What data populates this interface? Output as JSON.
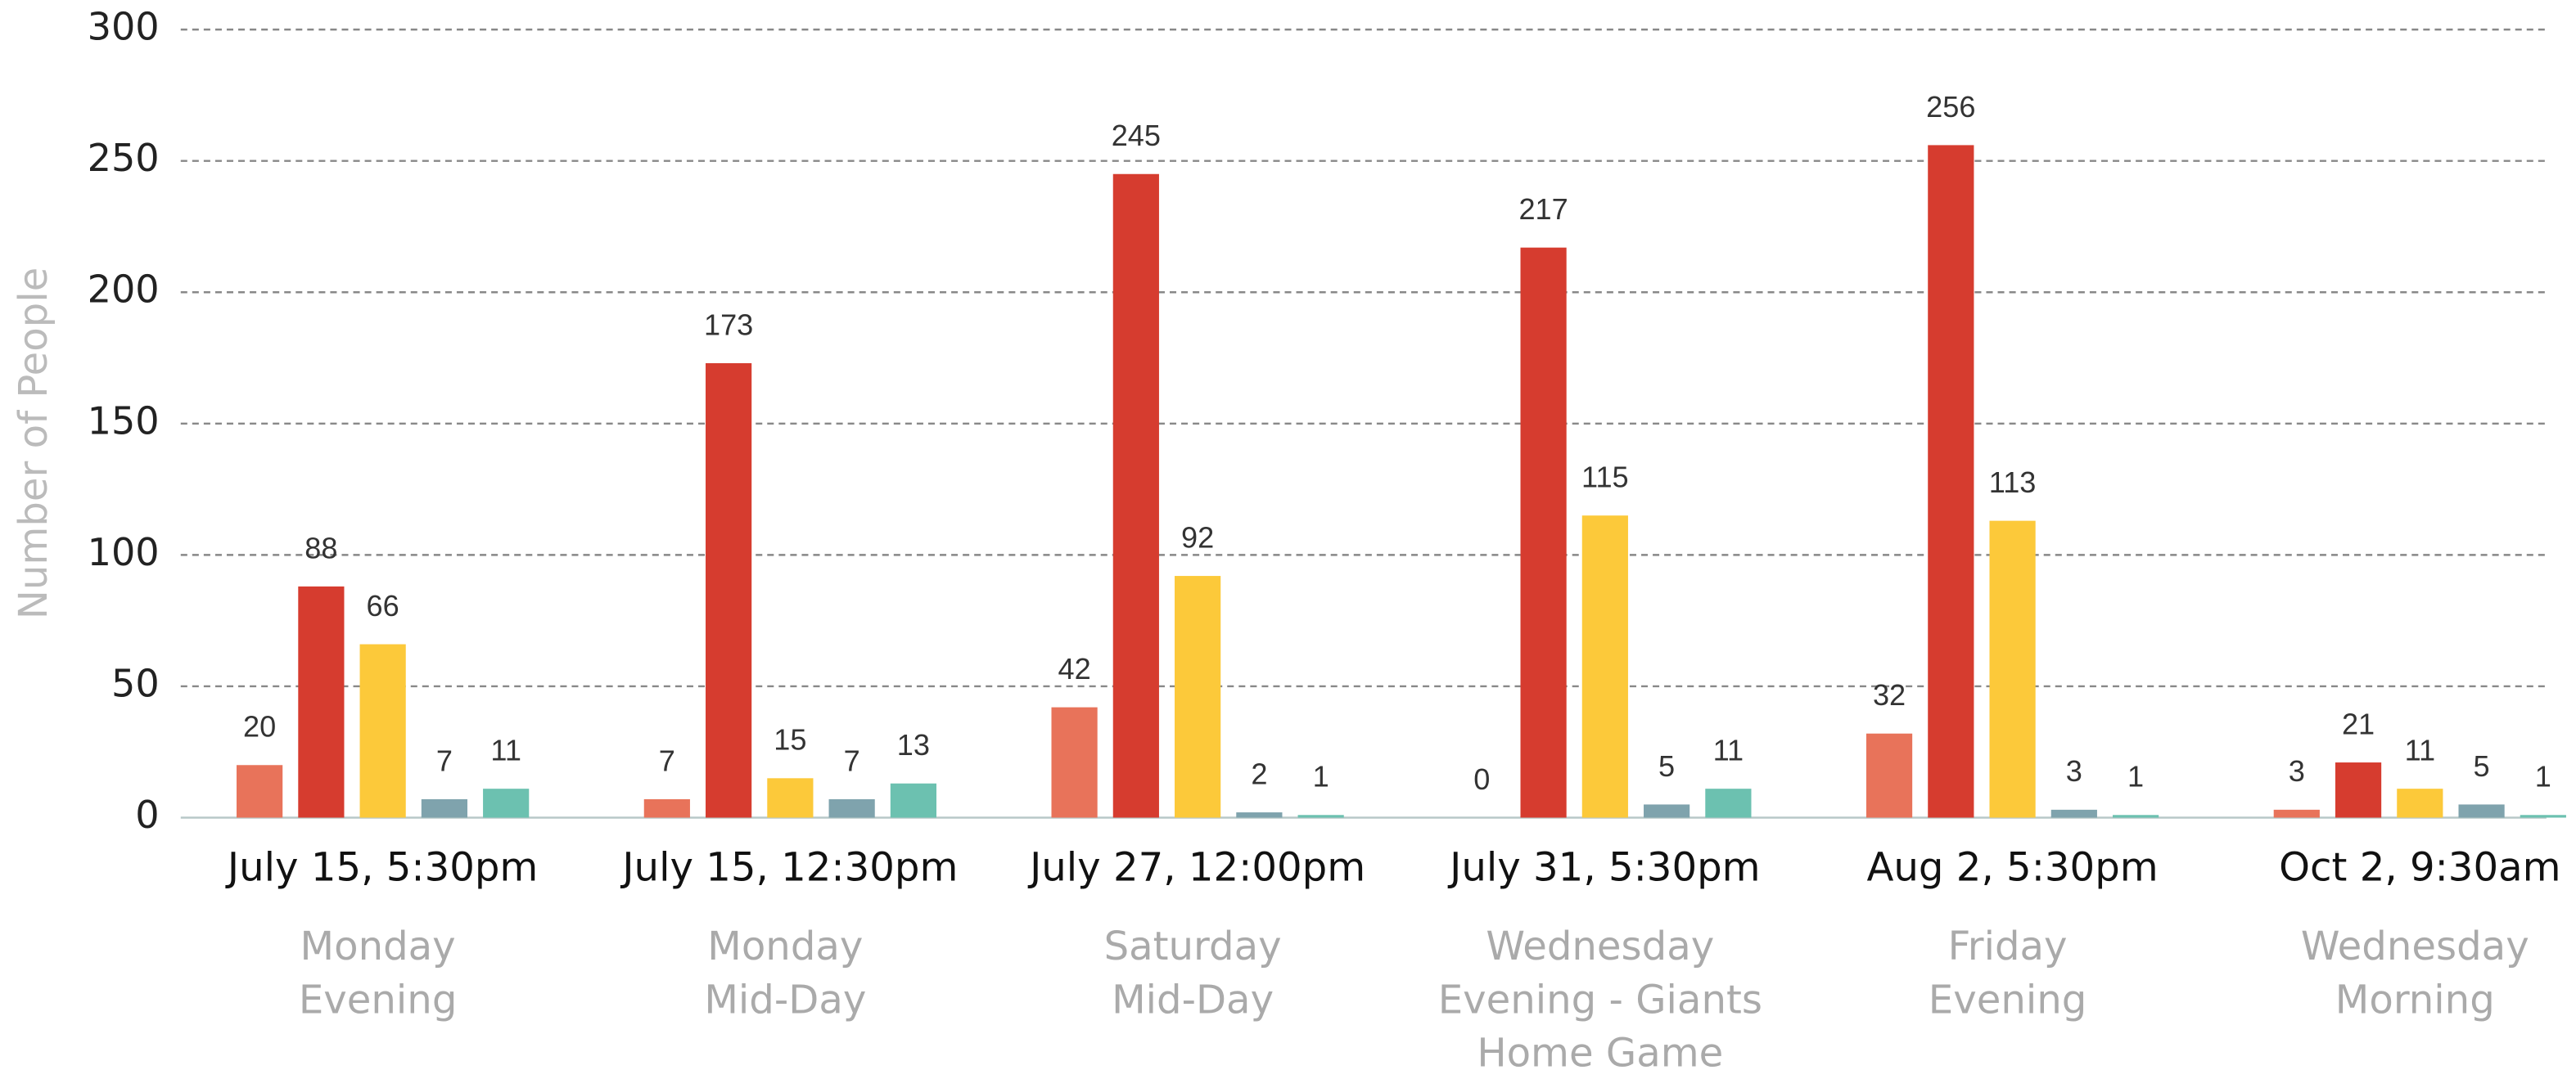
{
  "chart_data": {
    "type": "bar",
    "y_label": "Number of People",
    "categories": [
      "July 15, 5:30pm",
      "July 15, 12:30pm",
      "July 27, 12:00pm",
      "July 31, 5:30pm",
      "Aug 2, 5:30pm",
      "Oct 2, 9:30am"
    ],
    "sublabels": [
      [
        "Monday",
        "Evening"
      ],
      [
        "Monday",
        "Mid-Day"
      ],
      [
        "Saturday",
        "Mid-Day"
      ],
      [
        "Wednesday",
        "Evening - Giants",
        "Home Game"
      ],
      [
        "Friday",
        "Evening"
      ],
      [
        "Wednesday",
        "Morning"
      ]
    ],
    "series": [
      {
        "color": "#e8735a",
        "values": [
          20,
          7,
          42,
          0,
          32,
          3
        ]
      },
      {
        "color": "#d63c2f",
        "values": [
          88,
          173,
          245,
          217,
          256,
          21
        ]
      },
      {
        "color": "#fcc93a",
        "values": [
          66,
          15,
          92,
          115,
          113,
          11
        ]
      },
      {
        "color": "#7fa3ad",
        "values": [
          7,
          7,
          2,
          5,
          3,
          5
        ]
      },
      {
        "color": "#6cc1b0",
        "values": [
          11,
          13,
          1,
          11,
          1,
          1
        ]
      }
    ],
    "ylim": [
      0,
      300
    ],
    "yticks": [
      0,
      50,
      100,
      150,
      200,
      250,
      300
    ],
    "grid": true
  }
}
